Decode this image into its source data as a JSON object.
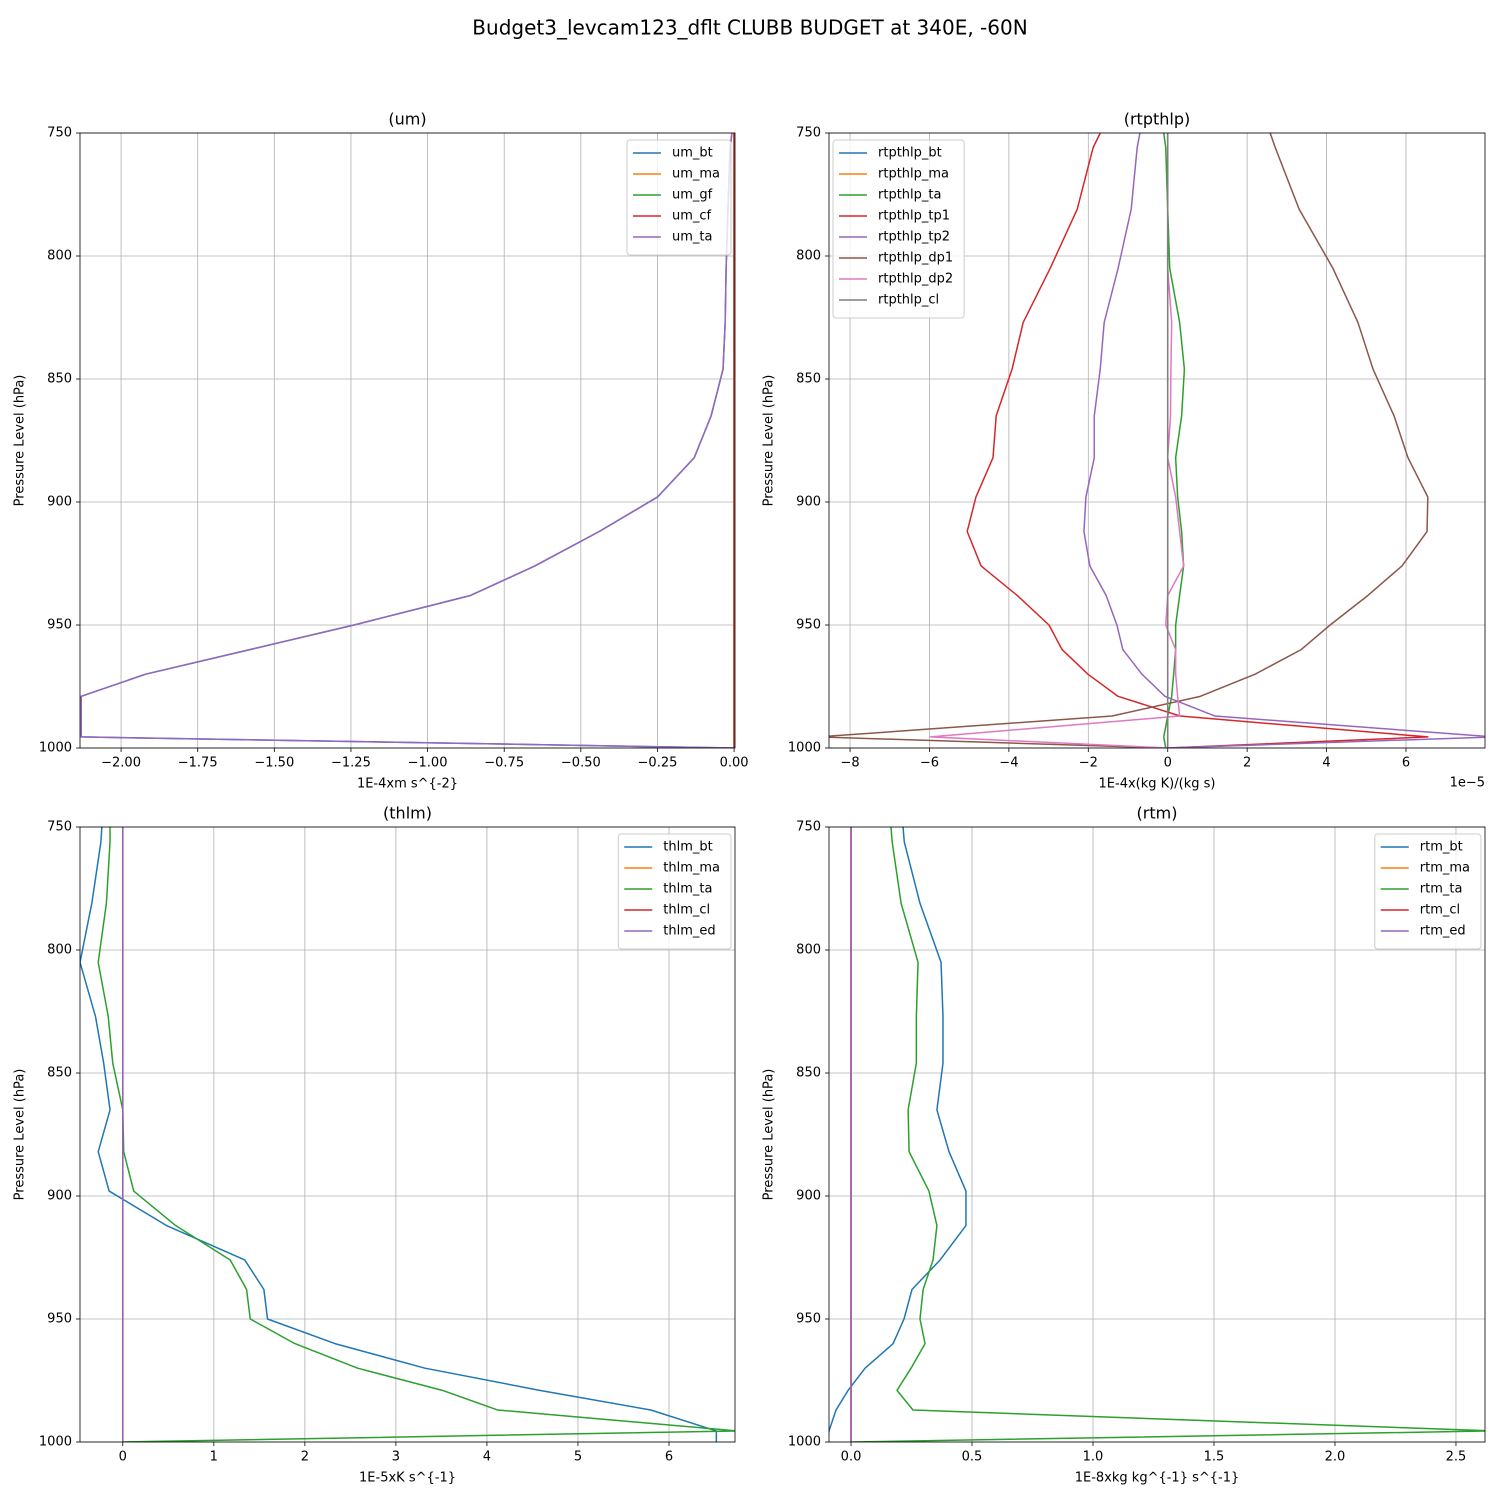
{
  "title": "Budget3_levcam123_dflt CLUBB BUDGET at 340E, -60N",
  "chart_data": [
    {
      "type": "line",
      "title": "(um)",
      "xlabel": "1E-4xm s^{-2}",
      "ylabel": "Pressure Level (hPa)",
      "xlim": [
        -2.134,
        0.003
      ],
      "ylim": [
        1000,
        750
      ],
      "grid": true,
      "legend": "upper right",
      "xticks": [
        {
          "value": -2,
          "label": "−2.00"
        },
        {
          "value": -1.75,
          "label": "−1.75"
        },
        {
          "value": -1.5,
          "label": "−1.50"
        },
        {
          "value": -1.25,
          "label": "−1.25"
        },
        {
          "value": -1,
          "label": "−1.00"
        },
        {
          "value": -0.75,
          "label": "−0.75"
        },
        {
          "value": -0.5,
          "label": "−0.50"
        },
        {
          "value": -0.25,
          "label": "−0.25"
        },
        {
          "value": 0,
          "label": "0.00"
        }
      ],
      "yticks": [
        1000,
        950,
        900,
        850,
        800,
        750
      ],
      "y": [
        750,
        756,
        781,
        805,
        827,
        846,
        865,
        882,
        898,
        912,
        926,
        938,
        950,
        960,
        970,
        979,
        987,
        995.5,
        1000
      ],
      "series": [
        {
          "name": "um_bt",
          "color": "#1f77b4",
          "values": [
            -0.007,
            -0.013,
            -0.02,
            -0.026,
            -0.029,
            -0.036,
            -0.075,
            -0.13,
            -0.25,
            -0.44,
            -0.65,
            -0.86,
            -1.24,
            -1.58,
            -1.92,
            -2.13,
            -2.13,
            -2.13,
            0
          ]
        },
        {
          "name": "um_ma",
          "color": "#ff7f0e",
          "values": [
            0,
            0,
            0,
            0,
            0,
            0,
            0,
            0,
            0,
            0,
            0,
            0,
            0,
            0,
            0,
            0,
            0,
            0,
            0
          ]
        },
        {
          "name": "um_gf",
          "color": "#2ca02c",
          "values": [
            0,
            0,
            0,
            0,
            0,
            0,
            0,
            0,
            0,
            0,
            0,
            0,
            0,
            0,
            0,
            0,
            0,
            0,
            0
          ]
        },
        {
          "name": "um_cf",
          "color": "#d62728",
          "values": [
            0,
            0,
            0,
            0,
            0,
            0,
            0,
            0,
            0,
            0,
            0,
            0,
            0,
            0,
            0,
            0,
            0,
            0,
            0
          ]
        },
        {
          "name": "um_ta",
          "color": "#9467bd",
          "values": [
            -0.007,
            -0.013,
            -0.02,
            -0.026,
            -0.029,
            -0.036,
            -0.075,
            -0.13,
            -0.25,
            -0.44,
            -0.65,
            -0.86,
            -1.24,
            -1.58,
            -1.92,
            -2.13,
            -2.13,
            -2.13,
            0
          ]
        }
      ]
    },
    {
      "type": "line",
      "title": "(rtpthlp)",
      "xlabel": "1E-4x(kg K)/(kg s)",
      "ylabel": "Pressure Level (hPa)",
      "offset_text": "1e−5",
      "xlim": [
        -8.53,
        7.99
      ],
      "ylim": [
        1000,
        750
      ],
      "grid": true,
      "legend": "upper left",
      "xticks": [
        {
          "value": -8,
          "label": "−8"
        },
        {
          "value": -6,
          "label": "−6"
        },
        {
          "value": -4,
          "label": "−4"
        },
        {
          "value": -2,
          "label": "−2"
        },
        0,
        2,
        4,
        6
      ],
      "yticks": [
        1000,
        950,
        900,
        850,
        800,
        750
      ],
      "y": [
        750,
        756,
        781,
        805,
        827,
        846,
        865,
        882,
        898,
        912,
        926,
        938,
        950,
        960,
        970,
        979,
        987,
        995.5,
        1000
      ],
      "series": [
        {
          "name": "rtpthlp_bt",
          "color": "#1f77b4",
          "values": [
            0,
            0,
            0,
            0,
            0,
            0,
            0,
            0,
            0,
            0,
            0,
            0,
            0,
            0,
            0,
            0,
            0,
            0,
            0
          ]
        },
        {
          "name": "rtpthlp_ma",
          "color": "#ff7f0e",
          "values": [
            0,
            0,
            0,
            0,
            0,
            0,
            0,
            0,
            0,
            0,
            0,
            0,
            0,
            0,
            0,
            0,
            0,
            0,
            0
          ]
        },
        {
          "name": "rtpthlp_ta",
          "color": "#2ca02c",
          "values": [
            -0.1,
            -0.05,
            0,
            0.05,
            0.3,
            0.42,
            0.35,
            0.2,
            0.25,
            0.35,
            0.4,
            0.3,
            0.2,
            0.2,
            0.15,
            0.1,
            0,
            -0.1,
            -0.05
          ]
        },
        {
          "name": "rtpthlp_tp1",
          "color": "#d62728",
          "values": [
            -1.7,
            -1.88,
            -2.28,
            -2.96,
            -3.64,
            -3.92,
            -4.32,
            -4.4,
            -4.83,
            -5.05,
            -4.7,
            -3.79,
            -2.99,
            -2.66,
            -2.01,
            -1.25,
            0.31,
            6.55,
            0
          ]
        },
        {
          "name": "rtpthlp_tp2",
          "color": "#9467bd",
          "values": [
            -0.7,
            -0.77,
            -0.92,
            -1.25,
            -1.6,
            -1.7,
            -1.85,
            -1.85,
            -2.06,
            -2.11,
            -1.96,
            -1.55,
            -1.28,
            -1.13,
            -0.65,
            -0.07,
            1.19,
            8.2,
            0
          ]
        },
        {
          "name": "rtpthlp_dp1",
          "color": "#8c564b",
          "values": [
            2.58,
            2.71,
            3.31,
            4.16,
            4.79,
            5.17,
            5.7,
            6.05,
            6.55,
            6.53,
            5.9,
            5.04,
            4.09,
            3.36,
            2.2,
            0.82,
            -1.4,
            -8.8,
            0
          ]
        },
        {
          "name": "rtpthlp_dp2",
          "color": "#e377c2",
          "values": [
            0,
            0,
            0,
            0,
            0.1,
            0.08,
            0.07,
            0,
            0.2,
            0.3,
            0.4,
            0,
            -0.05,
            0.2,
            0.2,
            0.25,
            0.3,
            -5.97,
            0
          ]
        },
        {
          "name": "rtpthlp_cl",
          "color": "#7f7f7f",
          "values": [
            0,
            0,
            0,
            0,
            0,
            0,
            0,
            0,
            0,
            0,
            0,
            0,
            0,
            0,
            0,
            0,
            0,
            0,
            0
          ]
        }
      ]
    },
    {
      "type": "line",
      "title": "(thlm)",
      "xlabel": "1E-5xK s^{-1}",
      "ylabel": "Pressure Level (hPa)",
      "xlim": [
        -0.47,
        6.725
      ],
      "ylim": [
        1000,
        750
      ],
      "grid": true,
      "legend": "upper right",
      "xticks": [
        0,
        1,
        2,
        3,
        4,
        5,
        6
      ],
      "yticks": [
        1000,
        950,
        900,
        850,
        800,
        750
      ],
      "y": [
        750,
        756,
        781,
        805,
        827,
        846,
        865,
        882,
        898,
        912,
        926,
        938,
        950,
        960,
        970,
        979,
        987,
        995.5,
        1000
      ],
      "series": [
        {
          "name": "thlm_bt",
          "color": "#1f77b4",
          "values": [
            -0.23,
            -0.24,
            -0.34,
            -0.47,
            -0.3,
            -0.21,
            -0.14,
            -0.27,
            -0.15,
            0.48,
            1.34,
            1.55,
            1.59,
            2.33,
            3.32,
            4.58,
            5.8,
            6.52,
            6.52
          ]
        },
        {
          "name": "thlm_ma",
          "color": "#ff7f0e",
          "values": [
            0,
            0,
            0,
            0,
            0,
            0,
            0,
            0,
            0,
            0,
            0,
            0,
            0,
            0,
            0,
            0,
            0,
            0,
            0
          ]
        },
        {
          "name": "thlm_ta",
          "color": "#2ca02c",
          "values": [
            -0.14,
            -0.14,
            -0.18,
            -0.27,
            -0.16,
            -0.11,
            0,
            0.01,
            0.12,
            0.58,
            1.18,
            1.36,
            1.4,
            1.89,
            2.58,
            3.51,
            4.12,
            6.75,
            0
          ]
        },
        {
          "name": "thlm_cl",
          "color": "#d62728",
          "values": [
            0,
            0,
            0,
            0,
            0,
            0,
            0,
            0,
            0,
            0,
            0,
            0,
            0,
            0,
            0,
            0,
            0,
            0,
            0
          ]
        },
        {
          "name": "thlm_ed",
          "color": "#9467bd",
          "values": [
            0,
            0,
            0,
            0,
            0,
            0,
            0,
            0,
            0,
            0,
            0,
            0,
            0,
            0,
            0,
            0,
            0,
            0,
            0
          ]
        }
      ]
    },
    {
      "type": "line",
      "title": "(rtm)",
      "xlabel": "1E-8xkg kg^{-1} s^{-1}",
      "ylabel": "Pressure Level (hPa)",
      "xlim": [
        -0.091,
        2.62
      ],
      "ylim": [
        1000,
        750
      ],
      "grid": true,
      "legend": "upper right",
      "xticks": [
        {
          "value": 0,
          "label": "0.0"
        },
        0.5,
        {
          "value": 1,
          "label": "1.0"
        },
        1.5,
        {
          "value": 2,
          "label": "2.0"
        },
        2.5
      ],
      "yticks": [
        1000,
        950,
        900,
        850,
        800,
        750
      ],
      "y": [
        750,
        756,
        781,
        805,
        827,
        846,
        865,
        882,
        898,
        912,
        926,
        938,
        950,
        960,
        970,
        979,
        987,
        995.5,
        1000
      ],
      "series": [
        {
          "name": "rtm_bt",
          "color": "#1f77b4",
          "values": [
            0.215,
            0.22,
            0.285,
            0.372,
            0.38,
            0.38,
            0.355,
            0.405,
            0.475,
            0.475,
            0.368,
            0.252,
            0.219,
            0.174,
            0.058,
            -0.012,
            -0.062,
            -0.091,
            -0.1
          ]
        },
        {
          "name": "rtm_ma",
          "color": "#ff7f0e",
          "values": [
            0,
            0,
            0,
            0,
            0,
            0,
            0,
            0,
            0,
            0,
            0,
            0,
            0,
            0,
            0,
            0,
            0,
            0,
            0
          ]
        },
        {
          "name": "rtm_ta",
          "color": "#2ca02c",
          "values": [
            0.165,
            0.17,
            0.207,
            0.277,
            0.27,
            0.27,
            0.236,
            0.24,
            0.322,
            0.355,
            0.339,
            0.298,
            0.285,
            0.306,
            0.248,
            0.19,
            0.256,
            2.65,
            0
          ]
        },
        {
          "name": "rtm_cl",
          "color": "#d62728",
          "values": [
            0,
            0,
            0,
            0,
            0,
            0,
            0,
            0,
            0,
            0,
            0,
            0,
            0,
            0,
            0,
            0,
            0,
            0,
            0
          ]
        },
        {
          "name": "rtm_ed",
          "color": "#9467bd",
          "values": [
            0,
            0,
            0,
            0,
            0,
            0,
            0,
            0,
            0,
            0,
            0,
            0,
            0,
            0,
            0,
            0,
            0,
            0,
            0
          ]
        }
      ]
    }
  ]
}
